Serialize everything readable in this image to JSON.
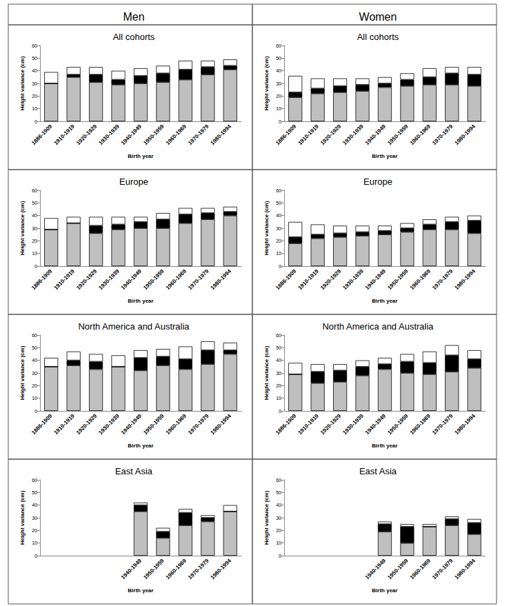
{
  "column_titles": [
    "Men",
    "Women"
  ],
  "chart_data": [
    {
      "type": "bar",
      "title": "All cohorts",
      "xlabel": "Birth year",
      "ylabel": "Height variance (cm)",
      "categories": [
        "1886-1909",
        "1910-1919",
        "1920-1929",
        "1930-1939",
        "1940-1949",
        "1950-1959",
        "1960-1969",
        "1970-1979",
        "1980-1994"
      ],
      "series": [
        {
          "color": "#bfbfbf",
          "values": [
            30,
            35,
            31,
            29,
            30,
            31,
            33,
            37,
            41
          ]
        },
        {
          "color": "#000000",
          "values": [
            0,
            2,
            6,
            4,
            6,
            7,
            8,
            6,
            3
          ]
        },
        {
          "color": "#ffffff",
          "values": [
            9,
            6,
            6,
            7,
            6,
            6,
            7,
            5,
            5
          ]
        }
      ],
      "ylim": [
        0,
        60
      ],
      "yticks": [
        0,
        10,
        20,
        30,
        40,
        50,
        60
      ],
      "grid": false,
      "stacked": true
    },
    {
      "type": "bar",
      "title": "All cohorts",
      "xlabel": "Birth year",
      "ylabel": "Height variance (cm)",
      "categories": [
        "1886-1909",
        "1910-1919",
        "1920-1929",
        "1930-1939",
        "1940-1949",
        "1950-1959",
        "1960-1969",
        "1970-1979",
        "1980-1994"
      ],
      "series": [
        {
          "color": "#bfbfbf",
          "values": [
            19,
            22,
            23,
            24,
            27,
            28,
            29,
            29,
            28
          ]
        },
        {
          "color": "#000000",
          "values": [
            4,
            4,
            5,
            5,
            3,
            5,
            6,
            9,
            9
          ]
        },
        {
          "color": "#ffffff",
          "values": [
            13,
            8,
            6,
            5,
            5,
            5,
            7,
            5,
            6
          ]
        }
      ],
      "ylim": [
        0,
        60
      ],
      "yticks": [
        0,
        10,
        20,
        30,
        40,
        50,
        60
      ],
      "grid": false,
      "stacked": true
    },
    {
      "type": "bar",
      "title": "Europe",
      "xlabel": "Birth year",
      "ylabel": "Height variance (cm)",
      "categories": [
        "1886-1909",
        "1910-1919",
        "1920-1929",
        "1930-1939",
        "1940-1949",
        "1950-1959",
        "1960-1969",
        "1970-1979",
        "1980-1994"
      ],
      "series": [
        {
          "color": "#bfbfbf",
          "values": [
            29,
            34,
            26,
            29,
            30,
            30,
            34,
            37,
            40
          ]
        },
        {
          "color": "#000000",
          "values": [
            0,
            0,
            6,
            4,
            5,
            7,
            7,
            5,
            3
          ]
        },
        {
          "color": "#ffffff",
          "values": [
            9,
            5,
            7,
            6,
            4,
            5,
            5,
            4,
            4
          ]
        }
      ],
      "ylim": [
        0,
        60
      ],
      "yticks": [
        0,
        10,
        20,
        30,
        40,
        50,
        60
      ],
      "grid": false,
      "stacked": true
    },
    {
      "type": "bar",
      "title": "Europe",
      "xlabel": "Birth year",
      "ylabel": "Height variance (cm)",
      "categories": [
        "1886-1909",
        "1910-1919",
        "1920-1929",
        "1930-1939",
        "1940-1949",
        "1950-1959",
        "1960-1969",
        "1970-1979",
        "1980-1994"
      ],
      "series": [
        {
          "color": "#bfbfbf",
          "values": [
            18,
            22,
            23,
            24,
            25,
            27,
            29,
            29,
            26
          ]
        },
        {
          "color": "#000000",
          "values": [
            5,
            3,
            3,
            3,
            3,
            3,
            4,
            6,
            10
          ]
        },
        {
          "color": "#ffffff",
          "values": [
            12,
            8,
            6,
            5,
            4,
            4,
            4,
            4,
            4
          ]
        }
      ],
      "ylim": [
        0,
        60
      ],
      "yticks": [
        0,
        10,
        20,
        30,
        40,
        50,
        60
      ],
      "grid": false,
      "stacked": true
    },
    {
      "type": "bar",
      "title": "North America and Australia",
      "xlabel": "Birth year",
      "ylabel": "Height variance (cm)",
      "categories": [
        "1886-1909",
        "1910-1919",
        "1920-1929",
        "1930-1939",
        "1940-1949",
        "1950-1959",
        "1960-1969",
        "1970-1979",
        "1980-1994"
      ],
      "series": [
        {
          "color": "#bfbfbf",
          "values": [
            35,
            36,
            33,
            35,
            32,
            36,
            33,
            37,
            45
          ]
        },
        {
          "color": "#000000",
          "values": [
            0,
            4,
            6,
            0,
            10,
            7,
            8,
            11,
            3
          ]
        },
        {
          "color": "#ffffff",
          "values": [
            7,
            7,
            6,
            9,
            6,
            6,
            10,
            7,
            6
          ]
        }
      ],
      "ylim": [
        0,
        60
      ],
      "yticks": [
        0,
        10,
        20,
        30,
        40,
        50,
        60
      ],
      "grid": false,
      "stacked": true
    },
    {
      "type": "bar",
      "title": "North America and Australia",
      "xlabel": "Birth year",
      "ylabel": "Height variance (cm)",
      "categories": [
        "1886-1909",
        "1910-1919",
        "1920-1929",
        "1930-1939",
        "1940-1949",
        "1950-1959",
        "1960-1969",
        "1970-1979",
        "1980-1994"
      ],
      "series": [
        {
          "color": "#bfbfbf",
          "values": [
            29,
            22,
            23,
            28,
            33,
            30,
            29,
            31,
            34
          ]
        },
        {
          "color": "#000000",
          "values": [
            0,
            9,
            9,
            7,
            4,
            9,
            9,
            13,
            7
          ]
        },
        {
          "color": "#ffffff",
          "values": [
            9,
            6,
            5,
            5,
            5,
            6,
            9,
            8,
            7
          ]
        }
      ],
      "ylim": [
        0,
        60
      ],
      "yticks": [
        0,
        10,
        20,
        30,
        40,
        50,
        60
      ],
      "grid": false,
      "stacked": true
    },
    {
      "type": "bar",
      "title": "East Asia",
      "xlabel": "Birth year",
      "ylabel": "Height variance (cm)",
      "categories": [
        null,
        null,
        null,
        null,
        "1940-1949",
        "1950-1959",
        "1960-1969",
        "1970-1979",
        "1980-1994"
      ],
      "series": [
        {
          "color": "#bfbfbf",
          "values": [
            null,
            null,
            null,
            null,
            35,
            14,
            24,
            27,
            35
          ]
        },
        {
          "color": "#000000",
          "values": [
            null,
            null,
            null,
            null,
            5,
            5,
            10,
            3,
            0
          ]
        },
        {
          "color": "#ffffff",
          "values": [
            null,
            null,
            null,
            null,
            2,
            3,
            3,
            2,
            5
          ]
        }
      ],
      "ylim": [
        0,
        60
      ],
      "yticks": [
        0,
        10,
        20,
        30,
        40,
        50,
        60
      ],
      "grid": false,
      "stacked": true
    },
    {
      "type": "bar",
      "title": "East Asia",
      "xlabel": "Birth year",
      "ylabel": "Height variance (cm)",
      "categories": [
        null,
        null,
        null,
        null,
        "1940-1949",
        "1950-1959",
        "1960-1969",
        "1970-1979",
        "1980-1994"
      ],
      "series": [
        {
          "color": "#bfbfbf",
          "values": [
            null,
            null,
            null,
            null,
            19,
            10,
            23,
            24,
            17
          ]
        },
        {
          "color": "#000000",
          "values": [
            null,
            null,
            null,
            null,
            6,
            13,
            0,
            5,
            9
          ]
        },
        {
          "color": "#ffffff",
          "values": [
            null,
            null,
            null,
            null,
            2,
            2,
            2,
            2,
            3
          ]
        }
      ],
      "ylim": [
        0,
        60
      ],
      "yticks": [
        0,
        10,
        20,
        30,
        40,
        50,
        60
      ],
      "grid": false,
      "stacked": true
    }
  ]
}
